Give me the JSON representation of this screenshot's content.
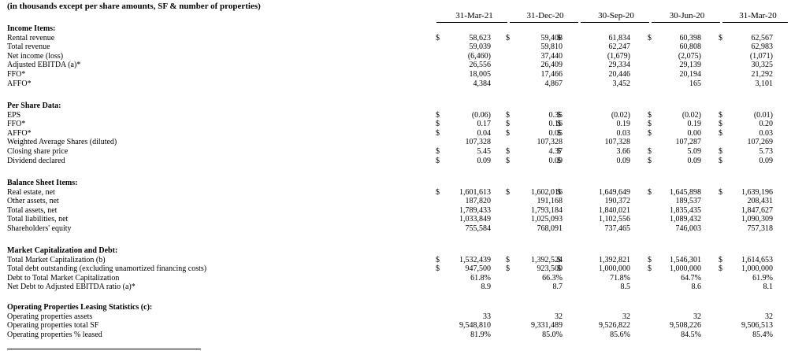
{
  "header": "(in thousands except per share amounts, SF & number of properties)",
  "periods": [
    "31-Mar-21",
    "31-Dec-20",
    "30-Sep-20",
    "30-Jun-20",
    "31-Mar-20"
  ],
  "sections": [
    {
      "title": "Income Items:",
      "rows": [
        {
          "label": "Rental revenue",
          "dollar": true,
          "values": [
            "58,623",
            "59,408",
            "61,834",
            "60,398",
            "62,567"
          ]
        },
        {
          "label": "Total revenue",
          "dollar": false,
          "values": [
            "59,039",
            "59,810",
            "62,247",
            "60,808",
            "62,983"
          ]
        },
        {
          "label": "Net income (loss)",
          "dollar": false,
          "values": [
            "(6,460)",
            "37,440",
            "(1,679)",
            "(2,075)",
            "(1,071)"
          ]
        },
        {
          "label": "Adjusted EBITDA (a)*",
          "dollar": false,
          "values": [
            "26,556",
            "26,409",
            "29,334",
            "29,139",
            "30,325"
          ]
        },
        {
          "label": "FFO*",
          "dollar": false,
          "values": [
            "18,005",
            "17,466",
            "20,446",
            "20,194",
            "21,292"
          ]
        },
        {
          "label": "AFFO*",
          "dollar": false,
          "values": [
            "4,384",
            "4,867",
            "3,452",
            "165",
            "3,101"
          ]
        }
      ]
    },
    {
      "title": "Per Share Data:",
      "rows": [
        {
          "label": "EPS",
          "dollar": true,
          "values": [
            "(0.06)",
            "0.35",
            "(0.02)",
            "(0.02)",
            "(0.01)"
          ]
        },
        {
          "label": "FFO*",
          "dollar": true,
          "values": [
            "0.17",
            "0.16",
            "0.19",
            "0.19",
            "0.20"
          ]
        },
        {
          "label": "AFFO*",
          "dollar": true,
          "values": [
            "0.04",
            "0.05",
            "0.03",
            "0.00",
            "0.03"
          ]
        },
        {
          "label": "Weighted Average Shares (diluted)",
          "dollar": false,
          "values": [
            "107,328",
            "107,328",
            "107,328",
            "107,287",
            "107,269"
          ]
        },
        {
          "label": "Closing share price",
          "dollar": true,
          "values": [
            "5.45",
            "4.37",
            "3.66",
            "5.09",
            "5.73"
          ]
        },
        {
          "label": "Dividend declared",
          "dollar": true,
          "values": [
            "0.09",
            "0.09",
            "0.09",
            "0.09",
            "0.09"
          ]
        }
      ]
    },
    {
      "title": "Balance Sheet Items:",
      "rows": [
        {
          "label": "Real estate, net",
          "dollar": true,
          "values": [
            "1,601,613",
            "1,602,016",
            "1,649,649",
            "1,645,898",
            "1,639,196"
          ]
        },
        {
          "label": "Other assets, net",
          "dollar": false,
          "values": [
            "187,820",
            "191,168",
            "190,372",
            "189,537",
            "208,431"
          ]
        },
        {
          "label": "Total assets, net",
          "dollar": false,
          "values": [
            "1,789,433",
            "1,793,184",
            "1,840,021",
            "1,835,435",
            "1,847,627"
          ]
        },
        {
          "label": "Total liabilities, net",
          "dollar": false,
          "values": [
            "1,033,849",
            "1,025,093",
            "1,102,556",
            "1,089,432",
            "1,090,309"
          ]
        },
        {
          "label": "Shareholders' equity",
          "dollar": false,
          "values": [
            "755,584",
            "768,091",
            "737,465",
            "746,003",
            "757,318"
          ]
        }
      ]
    },
    {
      "title": "Market Capitalization and Debt:",
      "rows": [
        {
          "label": "Total Market Capitalization (b)",
          "dollar": true,
          "values": [
            "1,532,439",
            "1,392,524",
            "1,392,821",
            "1,546,301",
            "1,614,653"
          ]
        },
        {
          "label": "Total debt outstanding (excluding unamortized financing costs)",
          "dollar": true,
          "values": [
            "947,500",
            "923,500",
            "1,000,000",
            "1,000,000",
            "1,000,000"
          ]
        },
        {
          "label": "Debt to Total Market Capitalization",
          "dollar": false,
          "values": [
            "61.8%",
            "66.3%",
            "71.8%",
            "64.7%",
            "61.9%"
          ]
        },
        {
          "label": "Net Debt to Adjusted EBITDA ratio (a)*",
          "dollar": false,
          "values": [
            "8.9",
            "8.7",
            "8.5",
            "8.6",
            "8.1"
          ]
        }
      ]
    },
    {
      "title": "Operating Properties Leasing Statistics (c):",
      "rows": [
        {
          "label": "Operating properties assets",
          "dollar": false,
          "values": [
            "33",
            "32",
            "32",
            "32",
            "32"
          ]
        },
        {
          "label": "Operating properties total SF",
          "dollar": false,
          "values": [
            "9,548,810",
            "9,331,489",
            "9,526,822",
            "9,508,226",
            "9,506,513"
          ]
        },
        {
          "label": "Operating properties % leased",
          "dollar": false,
          "values": [
            "81.9%",
            "85.0%",
            "85.6%",
            "84.5%",
            "85.4%"
          ]
        }
      ]
    }
  ]
}
